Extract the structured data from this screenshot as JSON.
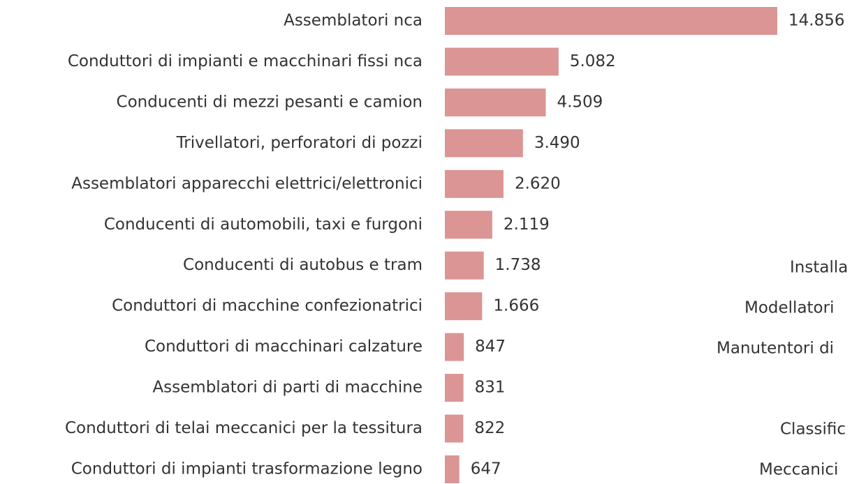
{
  "chart_data": {
    "type": "hbar",
    "categories": [
      "Assemblatori nca",
      "Conduttori di impianti e macchinari fissi nca",
      "Conducenti di mezzi pesanti e camion",
      "Trivellatori, perforatori di pozzi",
      "Assemblatori apparecchi elettrici/elettronici",
      "Conducenti di automobili, taxi e furgoni",
      "Conducenti di autobus e tram",
      "Conduttori di macchine confezionatrici",
      "Conduttori di macchinari calzature",
      "Assemblatori di parti di macchine",
      "Conduttori di telai meccanici per la tessitura",
      "Conduttori di impianti trasformazione legno"
    ],
    "values": [
      14856,
      5082,
      4509,
      3490,
      2620,
      2119,
      1738,
      1666,
      847,
      831,
      822,
      647
    ],
    "value_labels": [
      "14.856",
      "5.082",
      "4.509",
      "3.490",
      "2.620",
      "2.119",
      "1.738",
      "1.666",
      "847",
      "831",
      "822",
      "647"
    ],
    "color": "#db9594"
  },
  "cropped_labels": [
    "Installa",
    "Modellatori",
    "Manutentori di",
    "Classific",
    "Meccanici"
  ]
}
